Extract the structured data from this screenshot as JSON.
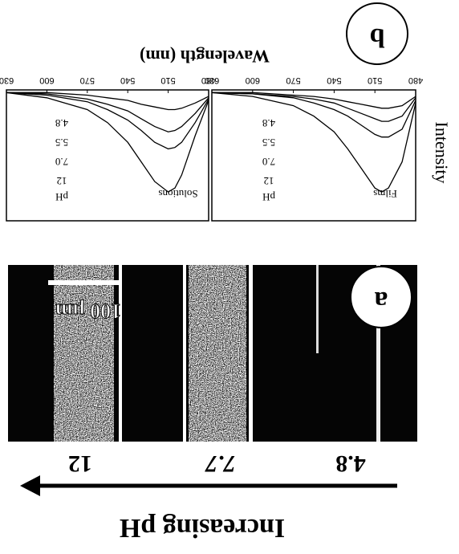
{
  "panel_a": {
    "label": "a",
    "arrow_label": "Increasing pH",
    "ph_labels": [
      "4.8",
      "7.7",
      "12"
    ],
    "scale_bar": "100 µm"
  },
  "panel_b": {
    "label": "b",
    "x_label": "Wavelength (nm)",
    "y_label": "Intensity"
  },
  "chart_data": [
    {
      "type": "line",
      "title": "Films",
      "legend_title": "pH",
      "x": [
        480,
        490,
        500,
        505,
        510,
        520,
        530,
        540,
        555,
        570,
        600,
        630
      ],
      "xlim": [
        480,
        630
      ],
      "xticks": [
        480,
        510,
        540,
        570,
        600,
        630
      ],
      "ylim": [
        0,
        1
      ],
      "series": [
        {
          "name": "12",
          "color": "#000000",
          "values": [
            0.1,
            0.55,
            0.75,
            0.78,
            0.75,
            0.6,
            0.45,
            0.32,
            0.2,
            0.12,
            0.05,
            0.02
          ]
        },
        {
          "name": "7.0",
          "color": "#000000",
          "values": [
            0.08,
            0.3,
            0.36,
            0.36,
            0.34,
            0.27,
            0.2,
            0.15,
            0.1,
            0.06,
            0.03,
            0.02
          ]
        },
        {
          "name": "5.5",
          "color": "#000000",
          "values": [
            0.06,
            0.2,
            0.24,
            0.24,
            0.22,
            0.18,
            0.14,
            0.1,
            0.07,
            0.05,
            0.03,
            0.02
          ]
        },
        {
          "name": "4.8",
          "color": "#000000",
          "values": [
            0.05,
            0.12,
            0.14,
            0.14,
            0.13,
            0.11,
            0.09,
            0.07,
            0.05,
            0.04,
            0.02,
            0.02
          ]
        }
      ]
    },
    {
      "type": "line",
      "title": "Solutions",
      "legend_title": "pH",
      "x": [
        480,
        490,
        500,
        505,
        510,
        520,
        530,
        540,
        555,
        570,
        600,
        630
      ],
      "xlim": [
        480,
        630
      ],
      "xticks": [
        480,
        510,
        540,
        570,
        600,
        630
      ],
      "ylim": [
        0,
        1
      ],
      "series": [
        {
          "name": "12",
          "color": "#000000",
          "values": [
            0.08,
            0.35,
            0.65,
            0.75,
            0.78,
            0.7,
            0.55,
            0.4,
            0.25,
            0.15,
            0.06,
            0.02
          ]
        },
        {
          "name": "7.0",
          "color": "#000000",
          "values": [
            0.07,
            0.25,
            0.4,
            0.44,
            0.45,
            0.4,
            0.31,
            0.23,
            0.15,
            0.09,
            0.04,
            0.02
          ]
        },
        {
          "name": "5.5",
          "color": "#000000",
          "values": [
            0.06,
            0.18,
            0.28,
            0.31,
            0.32,
            0.28,
            0.22,
            0.16,
            0.11,
            0.07,
            0.03,
            0.02
          ]
        },
        {
          "name": "4.8",
          "color": "#000000",
          "values": [
            0.05,
            0.1,
            0.14,
            0.15,
            0.15,
            0.13,
            0.11,
            0.08,
            0.06,
            0.04,
            0.02,
            0.02
          ]
        }
      ]
    }
  ]
}
